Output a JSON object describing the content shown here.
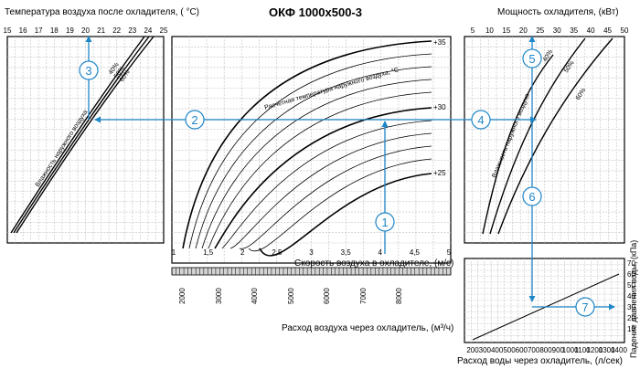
{
  "title": "ОКФ 1000х500-3",
  "chart_data": [
    {
      "id": "outlet-air-temp",
      "type": "line",
      "title": "Температура воздуха после охладителя, ( °C)",
      "x_ticks": [
        15,
        16,
        17,
        18,
        19,
        20,
        21,
        22,
        23,
        24,
        25
      ],
      "series": [
        {
          "name": "40%"
        },
        {
          "name": "50%"
        },
        {
          "name": "60%"
        }
      ],
      "annotation": "Влажность  наружного  воздуха",
      "grid": true
    },
    {
      "id": "air-velocity",
      "type": "line",
      "xlabel": "Скорость воздуха в охладителе, (м/с)",
      "x_ticks": [
        "1",
        "1,5",
        "2",
        "2,5",
        "3",
        "3,5",
        "4",
        "4,5",
        "5"
      ],
      "xlim": [
        1,
        5
      ],
      "annotation": "Расчетная   температура  наружного   воздуха, °С",
      "series": [
        {
          "name": "+35"
        },
        {
          "name": "+30"
        },
        {
          "name": "+25"
        }
      ],
      "grid": true
    },
    {
      "id": "air-flow",
      "type": "scale",
      "xlabel": "Расход воздуха через охладитель, (м³/ч)",
      "x_ticks": [
        "2000",
        "3000",
        "4000",
        "5000",
        "6000",
        "7000",
        "8000"
      ]
    },
    {
      "id": "cooling-power",
      "type": "line",
      "title": "Мощность охладителя, (кВт)",
      "x_ticks": [
        5,
        10,
        15,
        20,
        25,
        30,
        35,
        40,
        45,
        50
      ],
      "series": [
        {
          "name": "40%"
        },
        {
          "name": "50%"
        },
        {
          "name": "60%"
        }
      ],
      "annotation": "Влажность  наружного  воздуха",
      "grid": true
    },
    {
      "id": "pressure-drop",
      "type": "line",
      "xlabel": "Расход воды через охладитель, (л/сек)",
      "ylabel": "Падение давления воды, (кПа)",
      "x_ticks": [
        200,
        300,
        400,
        500,
        600,
        700,
        800,
        900,
        1000,
        1100,
        1200,
        1300,
        1400
      ],
      "xlim": [
        200,
        1400
      ],
      "y_ticks": [
        10,
        20,
        30,
        40,
        50,
        60,
        70
      ],
      "ylim": [
        0,
        70
      ],
      "series": [
        {
          "x": [
            200,
            1400
          ],
          "y": [
            0,
            60
          ]
        }
      ],
      "grid": true
    }
  ],
  "markers": [
    "1",
    "2",
    "3",
    "4",
    "5",
    "6",
    "7"
  ]
}
